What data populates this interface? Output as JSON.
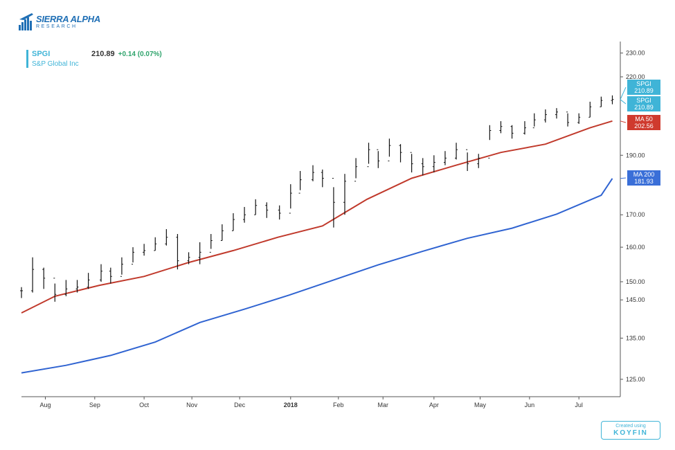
{
  "logo": {
    "title": "SIERRA ALPHA",
    "subtitle": "RESEARCH",
    "icon": "bar-chart-plane-icon"
  },
  "legend": {
    "ticker": "SPGI",
    "price": "210.89",
    "change": "+0.14 (0.07%)",
    "name": "S&P Global Inc"
  },
  "badge": {
    "top": "Created using",
    "brand": "KOYFIN"
  },
  "colors": {
    "price": "#111111",
    "ma50": "#c0392b",
    "ma200": "#2f63d1",
    "spgi_label": "#3fb4d7",
    "ma50_label": "#cf3a2e",
    "ma200_label": "#3a6fd8"
  },
  "chart_data": {
    "type": "line",
    "y_scale": "log",
    "ylim": [
      121,
      235
    ],
    "y_ticks": [
      "230.00",
      "220.00",
      "190.00",
      "170.00",
      "160.00",
      "150.00",
      "145.00",
      "135.00",
      "125.00"
    ],
    "x_ticks": [
      {
        "label": "Aug",
        "bold": false
      },
      {
        "label": "Sep",
        "bold": false
      },
      {
        "label": "Oct",
        "bold": false
      },
      {
        "label": "Nov",
        "bold": false
      },
      {
        "label": "Dec",
        "bold": false
      },
      {
        "label": "2018",
        "bold": true
      },
      {
        "label": "Feb",
        "bold": false
      },
      {
        "label": "Mar",
        "bold": false
      },
      {
        "label": "Apr",
        "bold": false
      },
      {
        "label": "May",
        "bold": false
      },
      {
        "label": "Jun",
        "bold": false
      },
      {
        "label": "Jul",
        "bold": false
      }
    ],
    "x_tick_dates": [
      "2017-08-01",
      "2017-09-01",
      "2017-10-02",
      "2017-11-01",
      "2017-12-01",
      "2018-01-02",
      "2018-02-01",
      "2018-03-01",
      "2018-04-02",
      "2018-05-01",
      "2018-06-01",
      "2018-07-02"
    ],
    "x_range": [
      "2017-07-17",
      "2018-07-28"
    ],
    "series": [
      {
        "name": "SPGI",
        "style": "ohlc",
        "dates": [
          "2017-07-17",
          "2017-07-24",
          "2017-07-31",
          "2017-08-07",
          "2017-08-14",
          "2017-08-21",
          "2017-08-28",
          "2017-09-05",
          "2017-09-11",
          "2017-09-18",
          "2017-09-25",
          "2017-10-02",
          "2017-10-09",
          "2017-10-16",
          "2017-10-23",
          "2017-10-30",
          "2017-11-06",
          "2017-11-13",
          "2017-11-20",
          "2017-11-27",
          "2017-12-04",
          "2017-12-11",
          "2017-12-18",
          "2017-12-26",
          "2018-01-02",
          "2018-01-08",
          "2018-01-16",
          "2018-01-22",
          "2018-01-29",
          "2018-02-05",
          "2018-02-12",
          "2018-02-20",
          "2018-02-26",
          "2018-03-05",
          "2018-03-12",
          "2018-03-19",
          "2018-03-26",
          "2018-04-02",
          "2018-04-09",
          "2018-04-16",
          "2018-04-23",
          "2018-04-30",
          "2018-05-07",
          "2018-05-14",
          "2018-05-21",
          "2018-05-29",
          "2018-06-04",
          "2018-06-11",
          "2018-06-18",
          "2018-06-25",
          "2018-07-02",
          "2018-07-09",
          "2018-07-16",
          "2018-07-23"
        ],
        "values": [
          147.5,
          153.5,
          151.0,
          146.5,
          148.0,
          148.5,
          150.5,
          153.0,
          151.5,
          155.0,
          158.5,
          159.0,
          161.0,
          163.0,
          156.0,
          157.0,
          158.5,
          162.0,
          165.0,
          168.5,
          170.0,
          173.0,
          171.5,
          170.5,
          177.0,
          181.5,
          184.0,
          182.0,
          174.0,
          181.0,
          186.0,
          192.0,
          188.0,
          193.5,
          191.0,
          187.0,
          186.0,
          187.5,
          189.0,
          192.0,
          187.0,
          189.0,
          199.0,
          200.5,
          198.0,
          200.0,
          203.0,
          205.0,
          206.0,
          202.0,
          204.0,
          208.0,
          210.5,
          210.89
        ],
        "highs": [
          148.5,
          157.0,
          154.0,
          149.5,
          150.5,
          150.5,
          152.5,
          155.0,
          154.0,
          157.0,
          160.0,
          161.0,
          163.0,
          165.5,
          164.0,
          158.5,
          161.5,
          164.0,
          167.0,
          170.5,
          172.5,
          175.0,
          174.0,
          173.0,
          180.0,
          184.5,
          186.5,
          185.0,
          179.0,
          183.5,
          189.0,
          194.5,
          191.5,
          196.0,
          194.0,
          190.5,
          189.0,
          190.0,
          191.5,
          194.5,
          191.0,
          190.5,
          201.0,
          202.5,
          201.0,
          202.5,
          205.5,
          207.0,
          207.5,
          205.5,
          205.5,
          210.0,
          212.0,
          212.5
        ],
        "lows": [
          145.5,
          147.0,
          148.0,
          144.5,
          146.0,
          147.0,
          148.0,
          150.0,
          149.5,
          152.0,
          155.5,
          157.5,
          159.0,
          160.5,
          153.5,
          155.0,
          155.0,
          159.5,
          162.0,
          165.0,
          167.5,
          170.0,
          169.0,
          168.5,
          172.0,
          178.0,
          181.0,
          179.0,
          166.0,
          170.0,
          182.0,
          187.0,
          185.5,
          189.5,
          187.5,
          184.0,
          183.0,
          184.0,
          186.5,
          188.5,
          184.5,
          185.5,
          195.5,
          198.0,
          196.0,
          197.5,
          200.5,
          202.0,
          203.5,
          200.5,
          201.5,
          204.0,
          208.0,
          209.0
        ]
      },
      {
        "name": "MA 50",
        "style": "line",
        "dates": [
          "2017-07-17",
          "2017-08-07",
          "2017-09-04",
          "2017-10-02",
          "2017-10-30",
          "2017-11-27",
          "2017-12-25",
          "2018-01-22",
          "2018-02-19",
          "2018-03-19",
          "2018-04-16",
          "2018-05-14",
          "2018-06-11",
          "2018-07-09",
          "2018-07-23"
        ],
        "values": [
          141.5,
          146.0,
          149.0,
          151.5,
          155.5,
          159.0,
          163.0,
          166.5,
          175.0,
          182.0,
          186.5,
          191.0,
          194.0,
          200.0,
          202.56
        ]
      },
      {
        "name": "MA 200",
        "style": "line",
        "dates": [
          "2017-07-17",
          "2017-08-14",
          "2017-09-11",
          "2017-10-09",
          "2017-11-06",
          "2017-12-04",
          "2018-01-01",
          "2018-01-29",
          "2018-02-26",
          "2018-03-26",
          "2018-04-23",
          "2018-05-21",
          "2018-06-18",
          "2018-07-16",
          "2018-07-23"
        ],
        "values": [
          126.5,
          128.3,
          130.7,
          134.0,
          139.0,
          142.5,
          146.3,
          150.5,
          154.8,
          158.8,
          162.7,
          165.8,
          170.2,
          176.3,
          181.93
        ]
      }
    ],
    "last_labels": [
      {
        "name": "SPGI",
        "value": "210.89"
      },
      {
        "name": "SPGI",
        "value": "210.89"
      },
      {
        "name": "MA 50",
        "value": "202.56"
      },
      {
        "name": "MA 200",
        "value": "181.93"
      }
    ]
  }
}
